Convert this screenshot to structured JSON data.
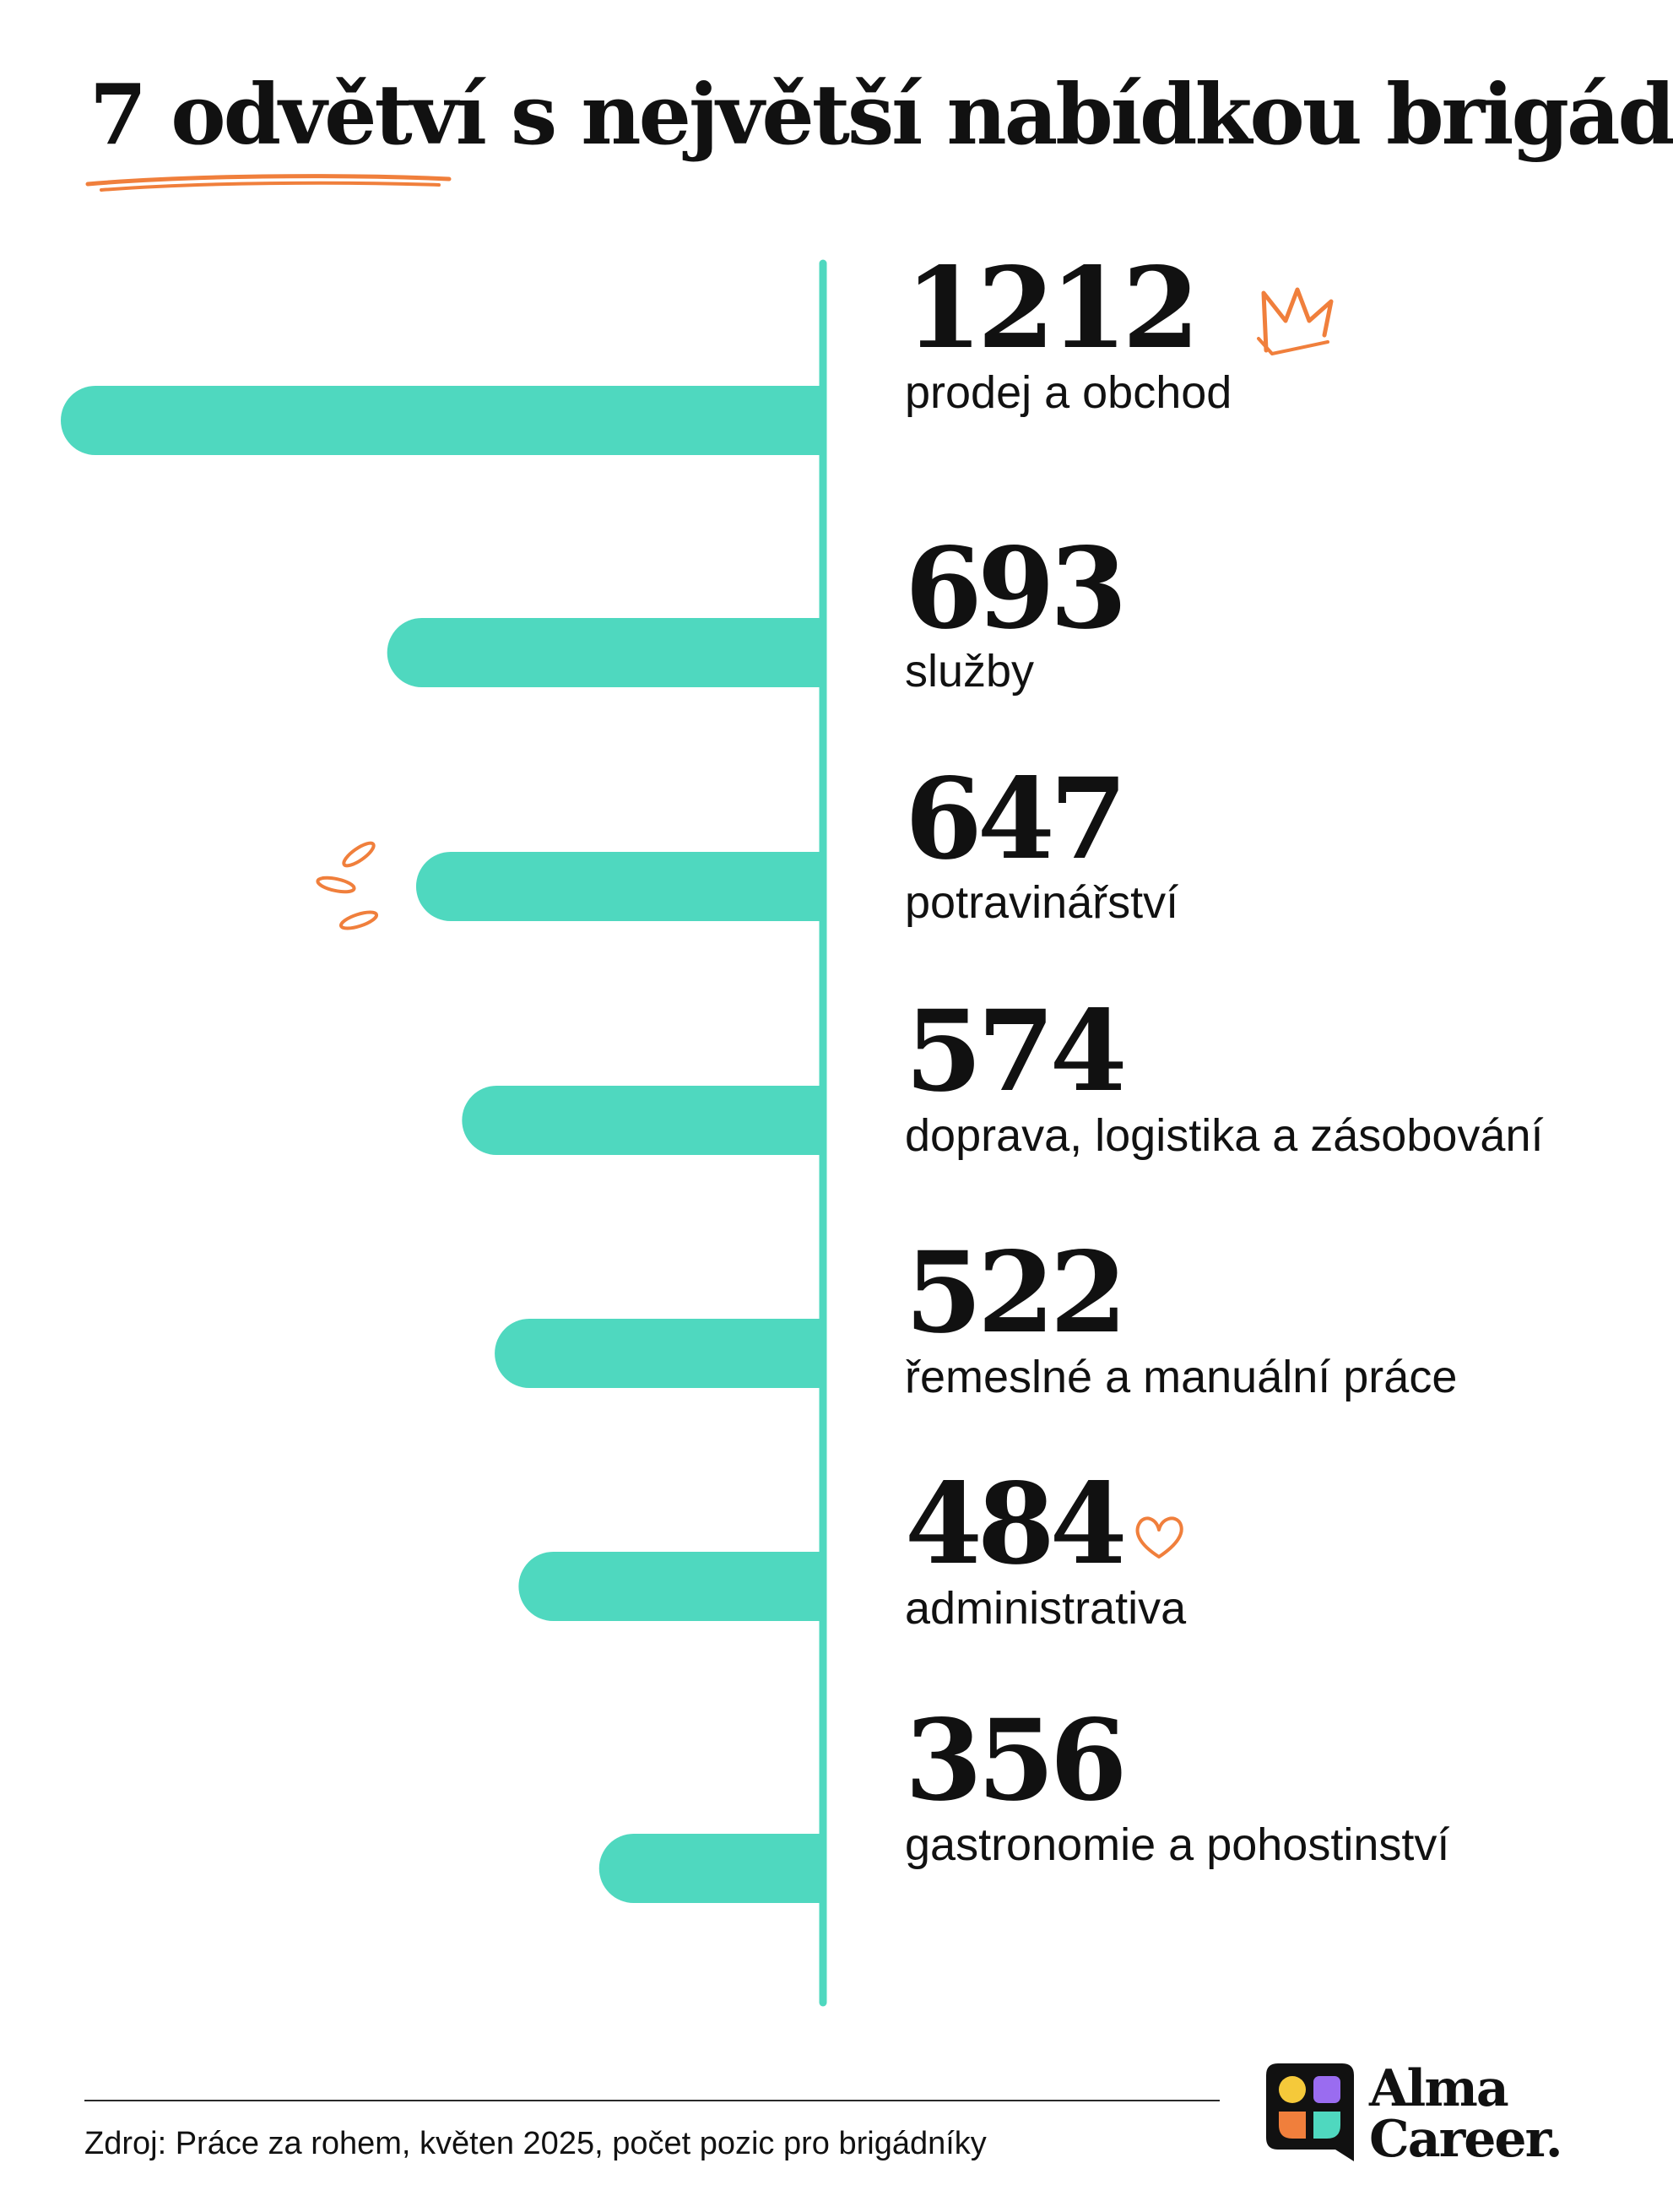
{
  "title": "7 odvětví s největší nabídkou brigád",
  "chart_data": {
    "type": "bar",
    "orientation": "horizontal",
    "categories": [
      "prodej a obchod",
      "služby",
      "potravinářství",
      "doprava, logistika a zásobování",
      "řemeslné a manuální práce",
      "administrativa",
      "gastronomie a pohostinství"
    ],
    "values": [
      1212,
      693,
      647,
      574,
      522,
      484,
      356
    ],
    "xlim": [
      0,
      1212
    ]
  },
  "colors": {
    "bar": "#4fd8bf",
    "accent": "#f07f3c",
    "text": "#111111"
  },
  "footer": {
    "source": "Zdroj: Práce za rohem, květen 2025, počet pozic pro brigádníky"
  },
  "logo": {
    "line1": "Alma",
    "line2": "Career."
  },
  "decorations": [
    "crown-doodle",
    "splash-doodle",
    "heart-doodle"
  ]
}
